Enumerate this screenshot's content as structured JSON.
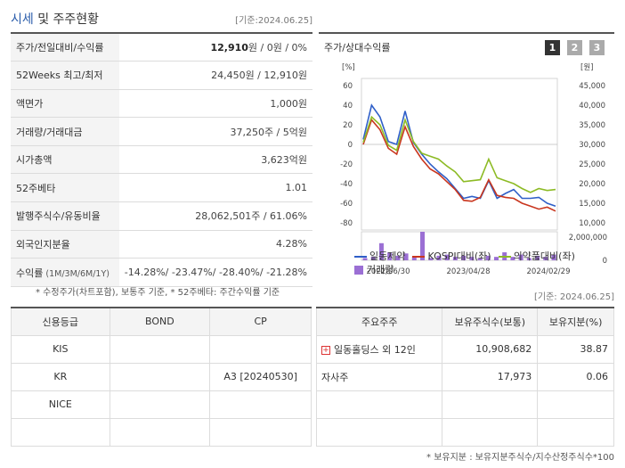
{
  "header": {
    "title_blue": "시세",
    "title_rest": " 및 주주현황",
    "date": "[기준:2024.06.25]"
  },
  "info_rows": [
    {
      "label": "주가/전일대비/수익률",
      "value_bold": "12,910",
      "value_rest": "원 / 0원 / 0%"
    },
    {
      "label": "52Weeks 최고/최저",
      "value": "24,450원 / 12,910원"
    },
    {
      "label": "액면가",
      "value": "1,000원"
    },
    {
      "label": "거래량/거래대금",
      "value": "37,250주 / 5억원"
    },
    {
      "label": "시가총액",
      "value": "3,623억원"
    },
    {
      "label": "52주베타",
      "value": "1.01"
    },
    {
      "label": "발행주식수/유동비율",
      "value": "28,062,501주 / 61.06%"
    },
    {
      "label": "외국인지분율",
      "value": "4.28%"
    },
    {
      "label": "수익률",
      "label_small": "(1M/3M/6M/1Y)",
      "value": "-14.28%/ -23.47%/ -28.40%/ -21.28%"
    }
  ],
  "note1": "* 수정주가(차트포함), 보통주 기준, * 52주베타: 주간수익률 기준",
  "note2": "[기준: 2024.06.25]",
  "note3": "* 보유지분 : 보유지분주식수/지수산정주식수*100",
  "chart_title": "주가/상대수익률",
  "tabs": [
    "1",
    "2",
    "3"
  ],
  "chart_data": {
    "type": "line",
    "left_unit": "[%]",
    "right_unit": "[원]",
    "left_ticks": [
      "60",
      "40",
      "20",
      "0",
      "-20",
      "-40",
      "-60",
      "-80"
    ],
    "left_range": [
      -80,
      60
    ],
    "right_ticks": [
      "45,000",
      "40,000",
      "35,000",
      "30,000",
      "25,000",
      "20,000",
      "15,000",
      "10,000"
    ],
    "right_range": [
      10000,
      45000
    ],
    "volume_ticks": [
      "2,000,000",
      "0"
    ],
    "volume_max": 2500000,
    "x_labels": [
      "2022/06/30",
      "2023/04/28",
      "2024/02/29"
    ],
    "series": [
      {
        "name": "일동제약",
        "color": "#2f5fc8",
        "values": [
          5,
          40,
          28,
          3,
          0,
          34,
          2,
          -10,
          -20,
          -28,
          -35,
          -45,
          -55,
          -53,
          -55,
          -37,
          -55,
          -50,
          -46,
          -55,
          -55,
          -54,
          -60,
          -63
        ]
      },
      {
        "name": "KOSPI대비(좌)",
        "color": "#c9361e",
        "values": [
          0,
          25,
          15,
          -4,
          -10,
          18,
          -2,
          -15,
          -25,
          -30,
          -38,
          -46,
          -57,
          -58,
          -54,
          -36,
          -52,
          -54,
          -55,
          -60,
          -63,
          -66,
          -64,
          -68
        ]
      },
      {
        "name": "의약품대비(좌)",
        "color": "#8dbb25",
        "values": [
          2,
          28,
          20,
          -1,
          -6,
          25,
          3,
          -9,
          -12,
          -15,
          -22,
          -28,
          -38,
          -37,
          -36,
          -15,
          -34,
          -37,
          -40,
          -45,
          -49,
          -45,
          -47,
          -46
        ]
      }
    ],
    "volume_series": {
      "name": "거래량",
      "color": "#9b6fd4",
      "values": [
        200000,
        300000,
        1500000,
        700000,
        400000,
        600000,
        300000,
        2600000,
        200000,
        400000,
        500000,
        300000,
        400000,
        300000,
        200000,
        400000,
        300000,
        700000,
        300000,
        500000,
        200000,
        400000,
        300000,
        500000
      ]
    }
  },
  "credit": {
    "headers": [
      "신용등급",
      "BOND",
      "CP"
    ],
    "rows": [
      [
        "KIS",
        "",
        ""
      ],
      [
        "KR",
        "",
        "A3 [20240530]"
      ],
      [
        "NICE",
        "",
        ""
      ],
      [
        "",
        "",
        ""
      ]
    ]
  },
  "holders": {
    "headers": [
      "주요주주",
      "보유주식수(보통)",
      "보유지분(%)"
    ],
    "rows": [
      {
        "name": "일동홀딩스 외 12인",
        "shares": "10,908,682",
        "pct": "38.87",
        "expand": true
      },
      {
        "name": "자사주",
        "shares": "17,973",
        "pct": "0.06",
        "expand": false
      },
      {
        "name": "",
        "shares": "",
        "pct": ""
      },
      {
        "name": "",
        "shares": "",
        "pct": ""
      }
    ]
  }
}
